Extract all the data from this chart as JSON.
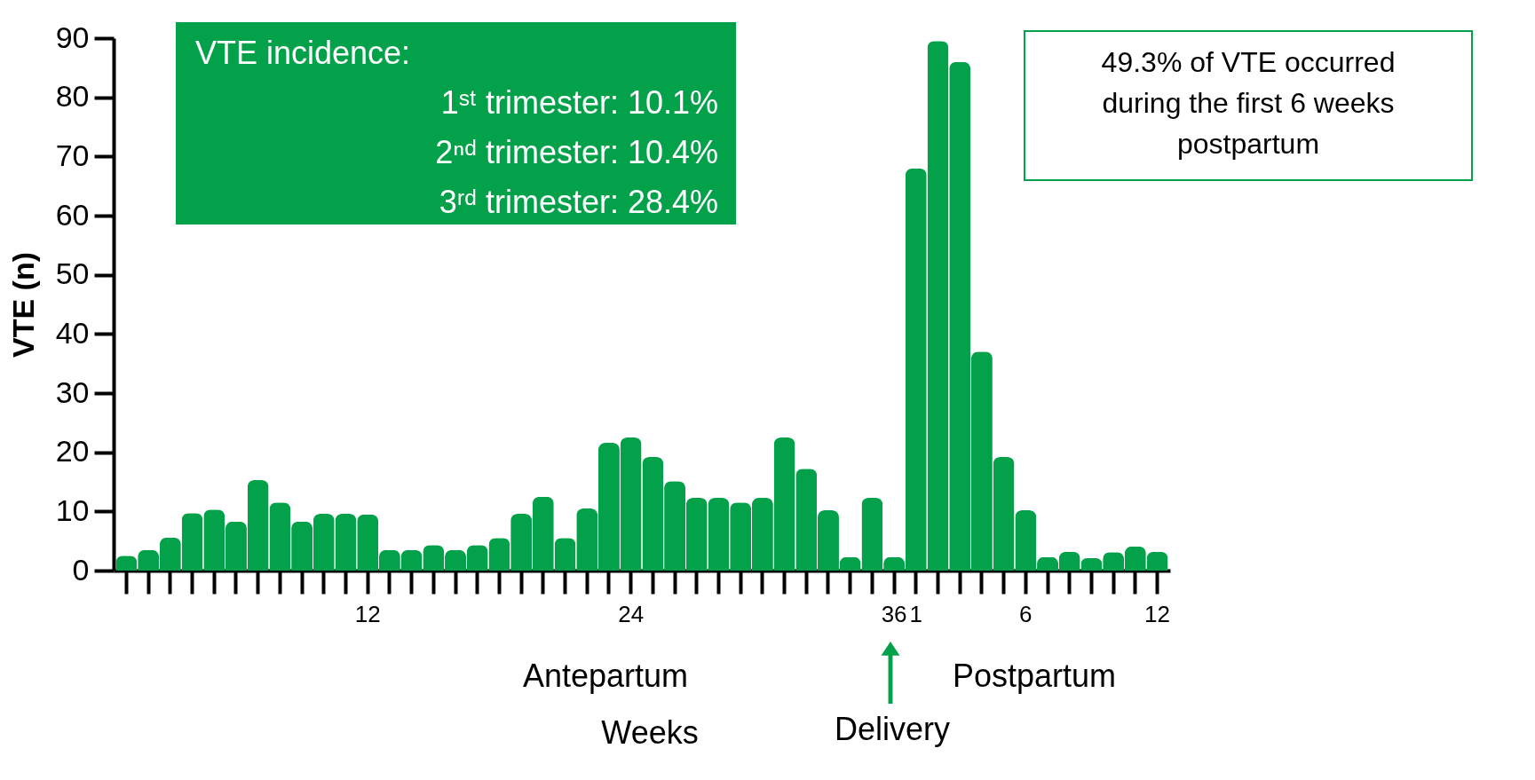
{
  "chart_data": {
    "type": "bar",
    "xlabel": "Weeks",
    "ylabel": "VTE (n)",
    "categories": [
      null,
      null,
      null,
      null,
      null,
      null,
      null,
      null,
      null,
      null,
      null,
      "12",
      null,
      null,
      null,
      null,
      null,
      null,
      null,
      null,
      null,
      null,
      null,
      "24",
      null,
      null,
      null,
      null,
      null,
      null,
      null,
      null,
      null,
      null,
      null,
      "36",
      "1",
      null,
      null,
      null,
      null,
      "6",
      null,
      null,
      null,
      null,
      null,
      "12"
    ],
    "values": [
      2.5,
      3.5,
      5.6,
      9.7,
      10.3,
      8.3,
      15.3,
      11.5,
      8.3,
      9.6,
      9.6,
      9.5,
      3.5,
      3.5,
      4.3,
      3.5,
      4.3,
      5.5,
      9.6,
      12.5,
      5.5,
      10.5,
      21.6,
      22.5,
      19.2,
      15.1,
      12.3,
      12.3,
      11.5,
      12.3,
      22.5,
      17.2,
      10.2,
      2.3,
      12.3,
      2.3,
      68,
      89.5,
      86,
      37,
      19.2,
      10.2,
      2.3,
      3.2,
      2.1,
      3.1,
      4.1,
      3.2
    ],
    "color": "#03a24a",
    "ylim": [
      0,
      90
    ],
    "yticks": [
      0,
      10,
      20,
      30,
      40,
      50,
      60,
      70,
      80,
      90
    ],
    "grid": false,
    "annotations": [
      "VTE incidence:",
      "1ˢᵗ trimester: 10.1%",
      "2ⁿᵈ trimester: 10.4%",
      "3ʳᵈ trimester: 28.4%",
      "49.3% of VTE occurred during the first 6 weeks postpartum",
      "Antepartum",
      "Postpartum",
      "Delivery"
    ]
  }
}
